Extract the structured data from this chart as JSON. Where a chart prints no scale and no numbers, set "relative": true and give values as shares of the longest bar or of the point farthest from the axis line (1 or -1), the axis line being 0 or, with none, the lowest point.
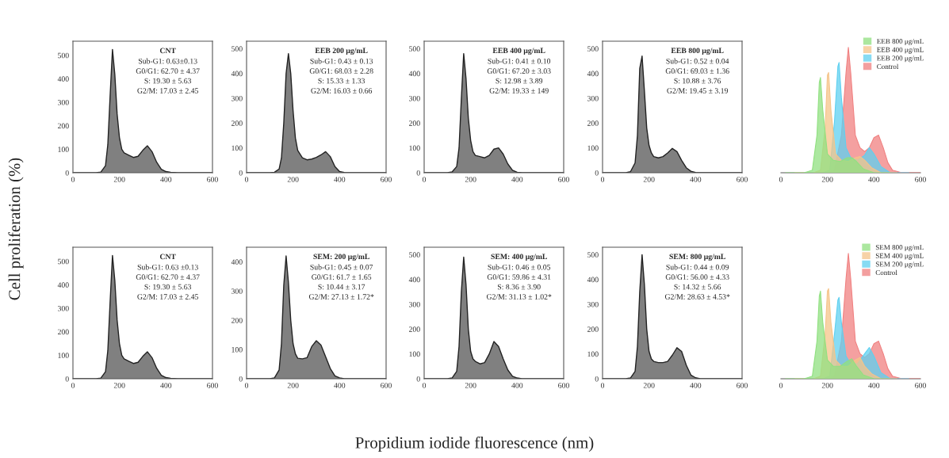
{
  "chart_data": [
    {
      "type": "area",
      "title": "CNT",
      "annotations": [
        "Sub-G1: 0.63±0.13",
        "G0/G1: 62.70 ± 4.37",
        "S: 19.30 ± 5.63",
        "G2/M: 17.03 ± 2.45",
        "Cell proliferation (%)",
        "Propidium iodide fluorescence (nm)"
      ],
      "x": [
        0,
        50,
        100,
        120,
        140,
        150,
        160,
        170,
        180,
        190,
        200,
        210,
        220,
        240,
        260,
        280,
        300,
        320,
        340,
        360,
        380,
        400,
        420,
        450,
        500,
        600
      ],
      "series": [
        {
          "color": "#808080",
          "values": [
            0,
            0,
            0,
            3,
            30,
            120,
            330,
            525,
            420,
            250,
            150,
            100,
            85,
            75,
            65,
            70,
            95,
            115,
            90,
            45,
            15,
            5,
            2,
            0,
            0,
            0
          ]
        }
      ],
      "xlim": [
        0,
        600
      ],
      "xticks": [
        0,
        200,
        400,
        600
      ],
      "ylim": [
        0,
        560
      ],
      "yticks": [
        0,
        100,
        200,
        300,
        400,
        500
      ]
    },
    {
      "type": "area",
      "title": "EEB 200 μg/mL",
      "annotations": [
        "Sub-G1: 0.43 ± 0.13",
        "G0/G1: 68.03 ± 2.28",
        "S: 15.33 ± 1.33",
        "G2/M: 16.03 ± 0.66"
      ],
      "x": [
        0,
        50,
        100,
        120,
        140,
        150,
        160,
        170,
        180,
        190,
        200,
        210,
        220,
        240,
        260,
        280,
        300,
        320,
        340,
        360,
        380,
        400,
        420,
        450,
        500,
        600
      ],
      "series": [
        {
          "color": "#808080",
          "values": [
            0,
            0,
            0,
            2,
            15,
            60,
            200,
            400,
            480,
            400,
            250,
            140,
            90,
            60,
            52,
            55,
            62,
            72,
            85,
            65,
            25,
            5,
            1,
            0,
            0,
            0
          ]
        }
      ],
      "xlim": [
        0,
        600
      ],
      "xticks": [
        0,
        200,
        400,
        600
      ],
      "ylim": [
        0,
        530
      ],
      "yticks": [
        0,
        100,
        200,
        300,
        400,
        500
      ]
    },
    {
      "type": "area",
      "title": "EEB 400 μg/mL",
      "annotations": [
        "Sub-G1: 0.41 ± 0.10",
        "G0/G1: 67.20 ± 3.03",
        "S: 12.98 ± 3.89",
        "G2/M: 19.33 ± 149"
      ],
      "x": [
        0,
        50,
        100,
        120,
        140,
        150,
        160,
        170,
        180,
        190,
        200,
        210,
        220,
        240,
        260,
        280,
        300,
        320,
        340,
        360,
        380,
        400,
        420,
        450,
        500,
        600
      ],
      "series": [
        {
          "color": "#808080",
          "values": [
            0,
            0,
            0,
            3,
            25,
            100,
            300,
            480,
            380,
            220,
            130,
            85,
            70,
            65,
            60,
            70,
            95,
            100,
            75,
            35,
            10,
            2,
            0,
            0,
            0,
            0
          ]
        }
      ],
      "xlim": [
        0,
        600
      ],
      "xticks": [
        0,
        200,
        400,
        600
      ],
      "ylim": [
        0,
        530
      ],
      "yticks": [
        0,
        100,
        200,
        300,
        400,
        500
      ]
    },
    {
      "type": "area",
      "title": "EEB 800 μg/mL",
      "annotations": [
        "Sub-G1: 0.52 ± 0.04",
        "G0/G1: 69.03 ± 1.36",
        "S: 10.88 ± 3.76",
        "G2/M: 19.45 ± 3.19"
      ],
      "x": [
        0,
        50,
        100,
        120,
        140,
        150,
        160,
        170,
        180,
        190,
        200,
        210,
        220,
        240,
        260,
        280,
        300,
        320,
        340,
        360,
        380,
        400,
        420,
        450,
        500,
        600
      ],
      "series": [
        {
          "color": "#808080",
          "values": [
            0,
            0,
            0,
            4,
            40,
            150,
            420,
            470,
            330,
            180,
            110,
            80,
            65,
            60,
            65,
            80,
            98,
            85,
            50,
            20,
            6,
            1,
            0,
            0,
            0,
            0
          ]
        }
      ],
      "xlim": [
        0,
        600
      ],
      "xticks": [
        0,
        200,
        400,
        600
      ],
      "ylim": [
        0,
        530
      ],
      "yticks": [
        0,
        100,
        200,
        300,
        400,
        500
      ]
    },
    {
      "type": "area",
      "relative": true,
      "legend": "top right",
      "tick_labels": "x",
      "xlim": [
        0,
        600
      ],
      "xticks": [
        0,
        200,
        400,
        600
      ],
      "series": [
        {
          "name": "EEB 800 μg/mL",
          "color": "#90e080",
          "x": [
            20,
            100,
            135,
            155,
            165,
            170,
            180,
            200,
            225,
            255,
            285,
            305,
            325,
            355,
            400,
            470
          ],
          "values": [
            0,
            0,
            0.02,
            0.3,
            0.72,
            0.76,
            0.5,
            0.15,
            0.1,
            0.09,
            0.12,
            0.12,
            0.09,
            0.03,
            0,
            0
          ]
        },
        {
          "name": "EEB 400 μg/mL",
          "color": "#f5c48a",
          "x": [
            60,
            140,
            170,
            190,
            200,
            205,
            215,
            235,
            260,
            290,
            320,
            340,
            360,
            390,
            430,
            500
          ],
          "values": [
            0,
            0,
            0.02,
            0.35,
            0.78,
            0.8,
            0.5,
            0.15,
            0.1,
            0.09,
            0.12,
            0.13,
            0.1,
            0.04,
            0,
            0
          ]
        },
        {
          "name": "EEB 200 μg/mL",
          "color": "#5fd0f0",
          "x": [
            100,
            180,
            210,
            230,
            245,
            250,
            260,
            280,
            300,
            330,
            360,
            380,
            400,
            430,
            470,
            550
          ],
          "values": [
            0,
            0,
            0.02,
            0.4,
            0.85,
            0.88,
            0.6,
            0.2,
            0.12,
            0.1,
            0.14,
            0.2,
            0.15,
            0.05,
            0,
            0
          ]
        },
        {
          "name": "Control",
          "color": "#f08080",
          "x": [
            150,
            200,
            230,
            260,
            280,
            290,
            300,
            320,
            340,
            360,
            380,
            400,
            420,
            440,
            460,
            480,
            520,
            600
          ],
          "values": [
            0,
            0,
            0.02,
            0.3,
            0.8,
            1.0,
            0.8,
            0.3,
            0.2,
            0.17,
            0.2,
            0.28,
            0.3,
            0.2,
            0.08,
            0.02,
            0,
            0
          ]
        }
      ]
    },
    {
      "type": "area",
      "title": "CNT",
      "annotations": [
        "Sub-G1: 0.63 ±0.13",
        "G0/G1: 62.70 ± 4.37",
        "S: 19.30 ± 5.63",
        "G2/M: 17.03 ± 2.45"
      ],
      "x": [
        0,
        50,
        100,
        120,
        140,
        150,
        160,
        170,
        180,
        190,
        200,
        210,
        220,
        240,
        260,
        280,
        300,
        320,
        340,
        360,
        380,
        400,
        420,
        450,
        500,
        600
      ],
      "series": [
        {
          "color": "#808080",
          "values": [
            0,
            0,
            0,
            3,
            30,
            120,
            330,
            525,
            420,
            250,
            150,
            100,
            85,
            75,
            65,
            70,
            95,
            115,
            90,
            45,
            15,
            5,
            2,
            0,
            0,
            0
          ]
        }
      ],
      "xlim": [
        0,
        600
      ],
      "xticks": [
        0,
        200,
        400,
        600
      ],
      "ylim": [
        0,
        560
      ],
      "yticks": [
        0,
        100,
        200,
        300,
        400,
        500
      ]
    },
    {
      "type": "area",
      "title": "SEM: 200 μg/mL",
      "annotations": [
        "Sub-G1: 0.45 ± 0.07",
        "G0/G1: 61.7 ± 1.65",
        "S: 10.44 ± 3.17",
        "G2/M: 27.13 ± 1.72*"
      ],
      "x": [
        0,
        50,
        100,
        120,
        140,
        150,
        160,
        170,
        180,
        190,
        200,
        210,
        220,
        240,
        260,
        280,
        300,
        320,
        340,
        360,
        380,
        400,
        420,
        450,
        500,
        600
      ],
      "series": [
        {
          "color": "#808080",
          "values": [
            0,
            0,
            0,
            3,
            30,
            120,
            320,
            420,
            330,
            200,
            120,
            85,
            70,
            68,
            72,
            110,
            130,
            115,
            75,
            35,
            10,
            3,
            0,
            0,
            0,
            0
          ]
        }
      ],
      "xlim": [
        0,
        600
      ],
      "xticks": [
        0,
        200,
        400,
        600
      ],
      "ylim": [
        0,
        450
      ],
      "yticks": [
        0,
        100,
        200,
        300,
        400
      ]
    },
    {
      "type": "area",
      "title": "SEM: 400 μg/mL",
      "annotations": [
        "Sub-G1: 0.46 ± 0.05",
        "G0/G1: 59.86 ± 4.31",
        "S: 8.36 ± 3.90",
        "G2/M: 31.13 ± 1.02*"
      ],
      "x": [
        0,
        50,
        100,
        120,
        140,
        150,
        160,
        170,
        180,
        190,
        200,
        210,
        220,
        240,
        260,
        280,
        300,
        320,
        340,
        360,
        380,
        400,
        420,
        450,
        500,
        600
      ],
      "series": [
        {
          "color": "#808080",
          "values": [
            0,
            0,
            0,
            3,
            30,
            130,
            350,
            490,
            380,
            200,
            110,
            80,
            70,
            60,
            65,
            100,
            150,
            130,
            80,
            35,
            10,
            3,
            0,
            0,
            0,
            0
          ]
        }
      ],
      "xlim": [
        0,
        600
      ],
      "xticks": [
        0,
        200,
        400,
        600
      ],
      "ylim": [
        0,
        530
      ],
      "yticks": [
        0,
        100,
        200,
        300,
        400,
        500
      ]
    },
    {
      "type": "area",
      "title": "SEM: 800 μg/mL",
      "annotations": [
        "Sub-G1: 0.44 ± 0.09",
        "G0/G1: 56.00 ± 4.33",
        "S: 14.32 ± 5.66",
        "G2/M: 28.63 ± 4.53*"
      ],
      "x": [
        0,
        50,
        100,
        120,
        140,
        150,
        160,
        170,
        180,
        190,
        200,
        210,
        220,
        240,
        260,
        280,
        300,
        320,
        340,
        360,
        380,
        400,
        420,
        450,
        500,
        600
      ],
      "series": [
        {
          "color": "#808080",
          "values": [
            0,
            0,
            0,
            3,
            30,
            130,
            350,
            500,
            380,
            200,
            110,
            80,
            70,
            65,
            65,
            70,
            95,
            125,
            110,
            55,
            15,
            4,
            0,
            0,
            0,
            0
          ]
        }
      ],
      "xlim": [
        0,
        600
      ],
      "xticks": [
        0,
        200,
        400,
        600
      ],
      "ylim": [
        0,
        530
      ],
      "yticks": [
        0,
        100,
        200,
        300,
        400,
        500
      ]
    },
    {
      "type": "area",
      "relative": true,
      "legend": "top right",
      "tick_labels": "x",
      "xlim": [
        0,
        600
      ],
      "xticks": [
        0,
        200,
        400,
        600
      ],
      "series": [
        {
          "name": "SEM 800 μg/mL",
          "color": "#90e080",
          "x": [
            20,
            100,
            135,
            155,
            165,
            170,
            180,
            200,
            225,
            255,
            285,
            305,
            325,
            355,
            400,
            470
          ],
          "values": [
            0,
            0,
            0.02,
            0.3,
            0.66,
            0.7,
            0.45,
            0.15,
            0.1,
            0.1,
            0.14,
            0.16,
            0.1,
            0.03,
            0,
            0
          ]
        },
        {
          "name": "SEM 400 μg/mL",
          "color": "#f5c48a",
          "x": [
            60,
            140,
            170,
            190,
            200,
            205,
            215,
            235,
            260,
            290,
            320,
            340,
            360,
            390,
            430,
            500
          ],
          "values": [
            0,
            0,
            0.02,
            0.35,
            0.7,
            0.72,
            0.45,
            0.15,
            0.1,
            0.1,
            0.15,
            0.17,
            0.1,
            0.04,
            0,
            0
          ]
        },
        {
          "name": "SEM 200 μg/mL",
          "color": "#5fd0f0",
          "x": [
            100,
            180,
            210,
            230,
            245,
            250,
            260,
            280,
            300,
            330,
            360,
            380,
            400,
            430,
            470,
            550
          ],
          "values": [
            0,
            0,
            0.02,
            0.35,
            0.63,
            0.65,
            0.45,
            0.18,
            0.12,
            0.12,
            0.2,
            0.25,
            0.18,
            0.05,
            0,
            0
          ]
        },
        {
          "name": "Control",
          "color": "#f08080",
          "x": [
            150,
            200,
            230,
            260,
            280,
            290,
            300,
            320,
            340,
            360,
            380,
            400,
            420,
            440,
            460,
            480,
            520,
            600
          ],
          "values": [
            0,
            0,
            0.02,
            0.3,
            0.8,
            1.0,
            0.8,
            0.3,
            0.2,
            0.17,
            0.2,
            0.28,
            0.3,
            0.2,
            0.08,
            0.02,
            0,
            0
          ]
        }
      ]
    }
  ]
}
